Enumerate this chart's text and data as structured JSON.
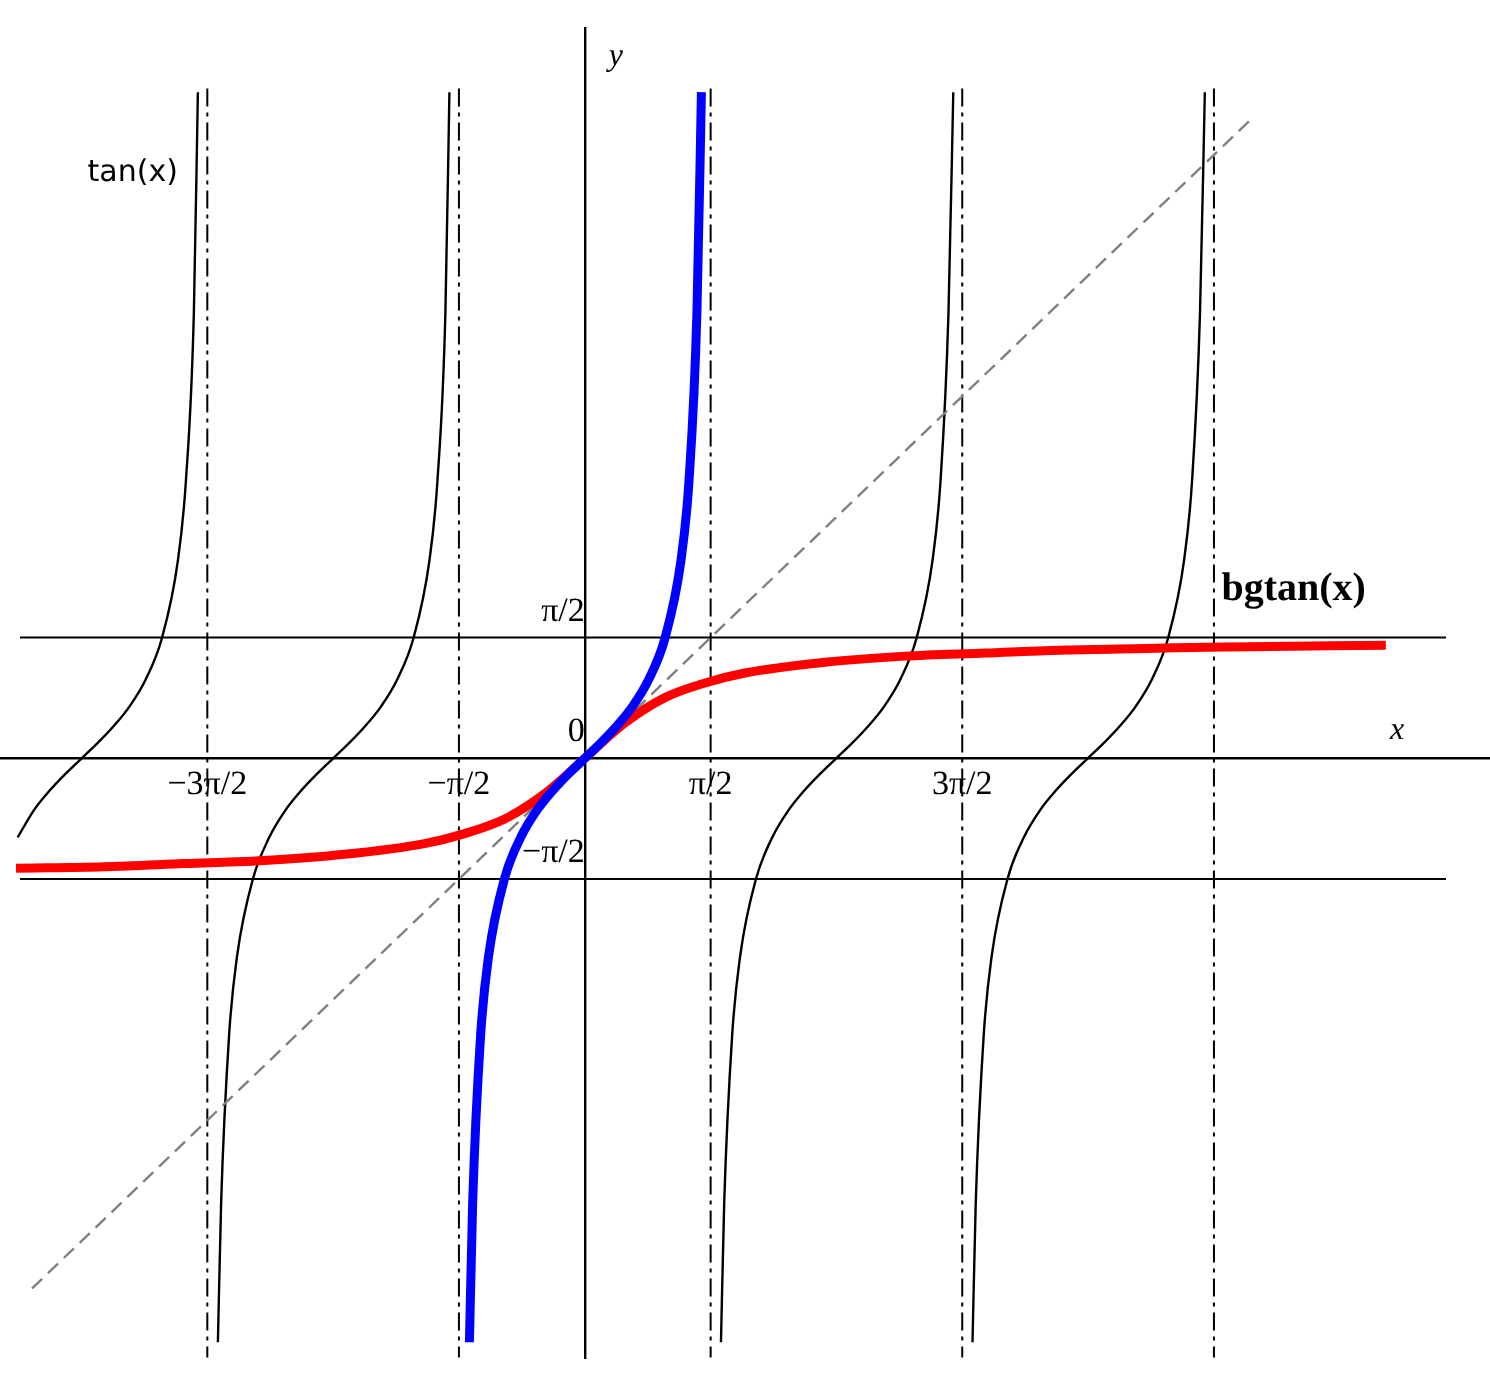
{
  "chart_data": {
    "type": "line",
    "xlabel": "x",
    "ylabel": "y",
    "xlim": [
      -7.3,
      11.3
    ],
    "ylim": [
      -7.8,
      9.5
    ],
    "xticks": [
      {
        "value": -4.712,
        "label": "−3π/2"
      },
      {
        "value": -1.571,
        "label": "−π/2"
      },
      {
        "value": 1.571,
        "label": "π/2"
      },
      {
        "value": 4.712,
        "label": "3π/2"
      }
    ],
    "yticks": [
      {
        "value": -1.571,
        "label": "−π/2"
      },
      0,
      {
        "value": 1.571,
        "label": "π/2"
      }
    ],
    "grid": false,
    "legend": false,
    "marker": "none",
    "ref_lines": [
      {
        "axis": "x",
        "value": -4.712,
        "color": "#000000",
        "line_style": "dashed"
      },
      {
        "axis": "x",
        "value": -1.571,
        "color": "#000000",
        "line_style": "dashed"
      },
      {
        "axis": "x",
        "value": 1.571,
        "color": "#000000",
        "line_style": "dashed"
      },
      {
        "axis": "x",
        "value": 4.712,
        "color": "#000000",
        "line_style": "dashed"
      },
      {
        "axis": "x",
        "value": 7.854,
        "color": "#000000",
        "line_style": "dashed"
      },
      {
        "axis": "y",
        "value": 1.571,
        "color": "#000000",
        "line_style": "solid"
      },
      {
        "axis": "y",
        "value": -1.571,
        "color": "#000000",
        "line_style": "solid"
      }
    ],
    "series": [
      {
        "name": "tan(x)",
        "color": "#000000",
        "line_style": "solid",
        "x": [
          -7.08,
          -6.88,
          -6.68,
          -6.48,
          -6.28,
          -6.08,
          -5.88,
          -5.68,
          -5.48,
          -5.28,
          -5.08,
          -4.98,
          -4.88,
          -4.83
        ],
        "values": [
          -1.03,
          -0.68,
          -0.42,
          -0.2,
          0,
          0.2,
          0.42,
          0.68,
          1.03,
          1.56,
          2.57,
          3.6,
          5.8,
          8.67
        ]
      },
      {
        "color": "#000000",
        "line_style": "solid",
        "x": [
          -4.58,
          -4.54,
          -4.44,
          -4.34,
          -4.14,
          -3.94,
          -3.74,
          -3.54,
          -3.34,
          -3.14,
          -2.94,
          -2.74,
          -2.54,
          -2.34,
          -2.14,
          -1.94,
          -1.84,
          -1.74,
          -1.69
        ],
        "values": [
          -7.6,
          -5.8,
          -3.6,
          -2.57,
          -1.56,
          -1.03,
          -0.68,
          -0.42,
          -0.2,
          0,
          0.2,
          0.42,
          0.68,
          1.03,
          1.56,
          2.57,
          3.6,
          5.8,
          8.67
        ]
      },
      {
        "color": "#000000",
        "line_style": "solid",
        "x": [
          1.7,
          1.74,
          1.84,
          1.94,
          2.14,
          2.34,
          2.54,
          2.74,
          2.94,
          3.14,
          3.34,
          3.54,
          3.74,
          3.94,
          4.14,
          4.34,
          4.44,
          4.54,
          4.6
        ],
        "values": [
          -7.6,
          -5.8,
          -3.6,
          -2.57,
          -1.56,
          -1.03,
          -0.68,
          -0.42,
          -0.2,
          0,
          0.2,
          0.42,
          0.68,
          1.03,
          1.56,
          2.57,
          3.6,
          5.8,
          8.67
        ]
      },
      {
        "color": "#000000",
        "line_style": "solid",
        "x": [
          4.84,
          4.88,
          4.98,
          5.08,
          5.28,
          5.48,
          5.68,
          5.88,
          6.08,
          6.28,
          6.48,
          6.68,
          6.88,
          7.08,
          7.28,
          7.48,
          7.58,
          7.68,
          7.74
        ],
        "values": [
          -7.6,
          -5.8,
          -3.6,
          -2.57,
          -1.56,
          -1.03,
          -0.68,
          -0.42,
          -0.2,
          0,
          0.2,
          0.42,
          0.68,
          1.03,
          1.56,
          2.57,
          3.6,
          5.8,
          8.67
        ]
      },
      {
        "color": "#808080",
        "line_style": "dashed",
        "x": [
          -6.9,
          8.3
        ],
        "values": [
          -6.9,
          8.3
        ]
      },
      {
        "name": "bgtan(x)",
        "color": "#ff0000",
        "line_style": "solid",
        "x": [
          -7.1,
          -6,
          -5,
          -4,
          -3,
          -2,
          -1.5,
          -1,
          -0.5,
          0,
          0.5,
          1,
          1.5,
          2,
          3,
          4,
          5,
          6,
          7,
          8,
          10
        ],
        "values": [
          -1.43,
          -1.41,
          -1.37,
          -1.33,
          -1.25,
          -1.11,
          -0.98,
          -0.79,
          -0.46,
          0,
          0.46,
          0.79,
          0.98,
          1.11,
          1.25,
          1.33,
          1.37,
          1.41,
          1.43,
          1.45,
          1.47
        ]
      },
      {
        "color": "#0000ff",
        "line_style": "solid",
        "x": [
          -1.44,
          -1.4,
          -1.3,
          -1.2,
          -1.0,
          -0.8,
          -0.6,
          -0.4,
          -0.2,
          0,
          0.2,
          0.4,
          0.6,
          0.8,
          1.0,
          1.2,
          1.3,
          1.4,
          1.456
        ],
        "values": [
          -7.6,
          -5.8,
          -3.6,
          -2.57,
          -1.56,
          -1.03,
          -0.68,
          -0.42,
          -0.2,
          0,
          0.2,
          0.42,
          0.68,
          1.03,
          1.56,
          2.57,
          3.6,
          5.8,
          8.67
        ]
      }
    ]
  }
}
